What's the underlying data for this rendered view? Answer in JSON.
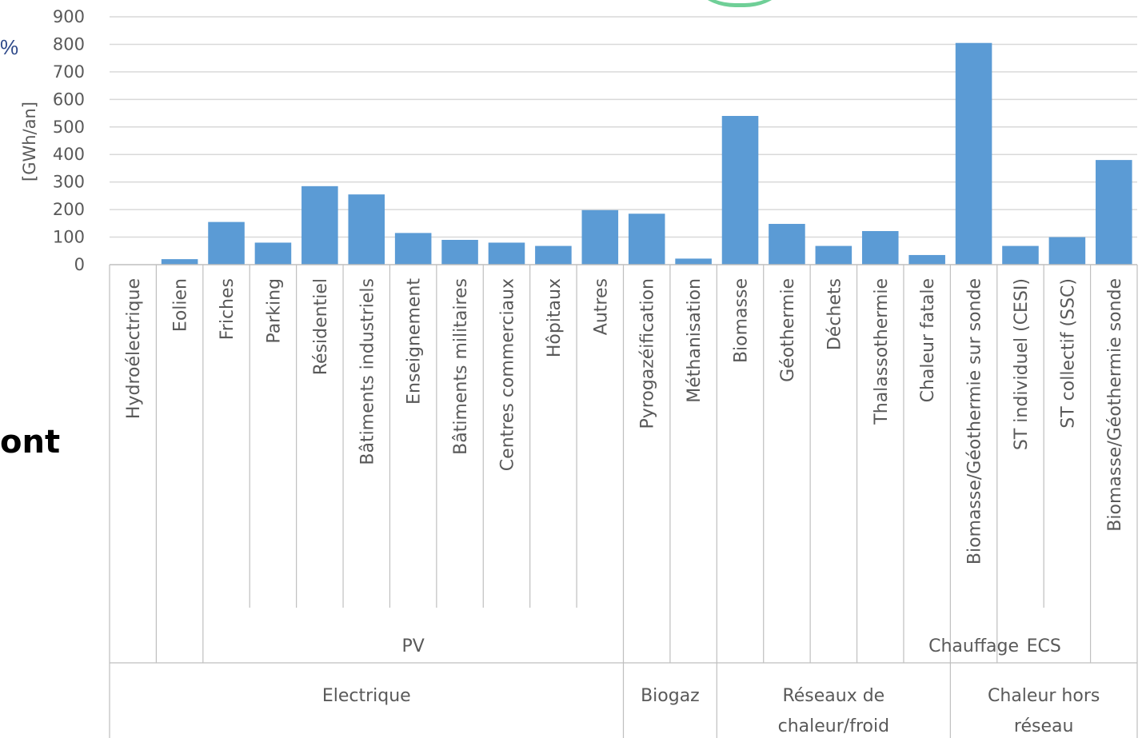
{
  "side_text": {
    "pct": "%",
    "ont": "ont"
  },
  "colors": {
    "bar": "#5b9bd5",
    "grid": "#d9d9d9",
    "axis": "#bfbfbf",
    "text": "#595959",
    "accent_arc": "#6fcf97"
  },
  "chart_data": {
    "type": "bar",
    "ylabel": "[GWh/an]",
    "ylim": [
      0,
      900
    ],
    "yticks": [
      0,
      100,
      200,
      300,
      400,
      500,
      600,
      700,
      800,
      900
    ],
    "grid": true,
    "categories": [
      "Hydroélectrique",
      "Eolien",
      "Friches",
      "Parking",
      "Résidentiel",
      "Bâtiments industriels",
      "Enseignement",
      "Bâtiments militaires",
      "Centres commerciaux",
      "Hôpitaux",
      "Autres",
      "Pyrogazéification",
      "Méthanisation",
      "Biomasse",
      "Géothermie",
      "Déchets",
      "Thalassothermie",
      "Chaleur fatale",
      "Biomasse/Géothermie sur sonde",
      "ST individuel (CESI)",
      "ST collectif (SSC)",
      "Biomasse/Géothermie sonde"
    ],
    "values": [
      0,
      20,
      155,
      80,
      285,
      255,
      115,
      90,
      80,
      68,
      198,
      185,
      22,
      540,
      148,
      68,
      122,
      35,
      805,
      68,
      100,
      380
    ],
    "subgroups": [
      {
        "label": "",
        "start": 0,
        "end": 1
      },
      {
        "label": "",
        "start": 1,
        "end": 2
      },
      {
        "label": "PV",
        "start": 2,
        "end": 11
      },
      {
        "label": "",
        "start": 11,
        "end": 12
      },
      {
        "label": "",
        "start": 12,
        "end": 13
      },
      {
        "label": "",
        "start": 13,
        "end": 14
      },
      {
        "label": "",
        "start": 14,
        "end": 15
      },
      {
        "label": "",
        "start": 15,
        "end": 16
      },
      {
        "label": "",
        "start": 16,
        "end": 17
      },
      {
        "label": "",
        "start": 17,
        "end": 18
      },
      {
        "label": "Chauffage",
        "start": 18,
        "end": 19
      },
      {
        "label": "ECS",
        "start": 19,
        "end": 21
      },
      {
        "label": "",
        "start": 21,
        "end": 22
      }
    ],
    "groups": [
      {
        "label": [
          "Electrique"
        ],
        "start": 0,
        "end": 11
      },
      {
        "label": [
          "Biogaz"
        ],
        "start": 11,
        "end": 13
      },
      {
        "label": [
          "Réseaux de",
          "chaleur/froid"
        ],
        "start": 13,
        "end": 18
      },
      {
        "label": [
          "Chaleur hors",
          "réseau"
        ],
        "start": 18,
        "end": 22
      }
    ]
  }
}
